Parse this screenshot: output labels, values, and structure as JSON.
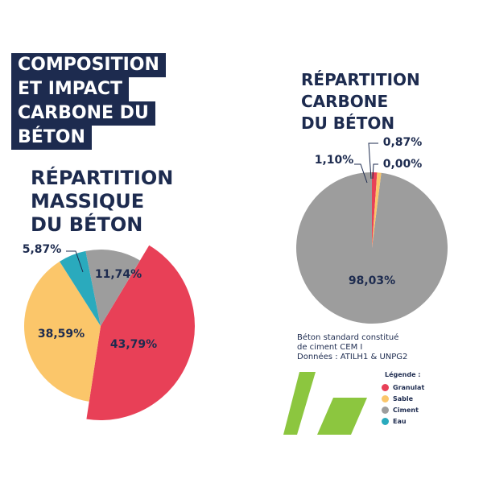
{
  "header": {
    "title_lines": [
      "COMPOSITION",
      "ET IMPACT",
      "CARBONE DU",
      "BÉTON"
    ]
  },
  "colors": {
    "navy": "#1d2b4f",
    "granulat": "#e84057",
    "sable": "#fbc66a",
    "ciment": "#9d9d9d",
    "eau": "#2aaabd",
    "green": "#8cc63f"
  },
  "chart_data": [
    {
      "type": "pie",
      "title": "RÉPARTITION\nMASSIQUE\nDU BÉTON",
      "slices": [
        {
          "category": "Granulat",
          "value": 43.79,
          "label": "43,79%"
        },
        {
          "category": "Sable",
          "value": 38.59,
          "label": "38,59%"
        },
        {
          "category": "Eau",
          "value": 5.87,
          "label": "5,87%"
        },
        {
          "category": "Ciment",
          "value": 11.74,
          "label": "11,74%"
        }
      ]
    },
    {
      "type": "pie",
      "title": "RÉPARTITION\nCARBONE\nDU BÉTON",
      "slices": [
        {
          "category": "Ciment",
          "value": 98.03,
          "label": "98,03%"
        },
        {
          "category": "Granulat",
          "value": 1.1,
          "label": "1,10%"
        },
        {
          "category": "Sable",
          "value": 0.87,
          "label": "0,87%"
        },
        {
          "category": "Eau",
          "value": 0.0,
          "label": "0,00%"
        }
      ]
    }
  ],
  "note": {
    "lines": [
      "Béton standard constitué",
      "de ciment CEM I",
      "Données : ATILH1 & UNPG2"
    ]
  },
  "legend": {
    "title": "Légende :",
    "items": [
      {
        "label": "Granulat",
        "color": "#e84057"
      },
      {
        "label": "Sable",
        "color": "#fbc66a"
      },
      {
        "label": "Ciment",
        "color": "#9d9d9d"
      },
      {
        "label": "Eau",
        "color": "#2aaabd"
      }
    ]
  }
}
